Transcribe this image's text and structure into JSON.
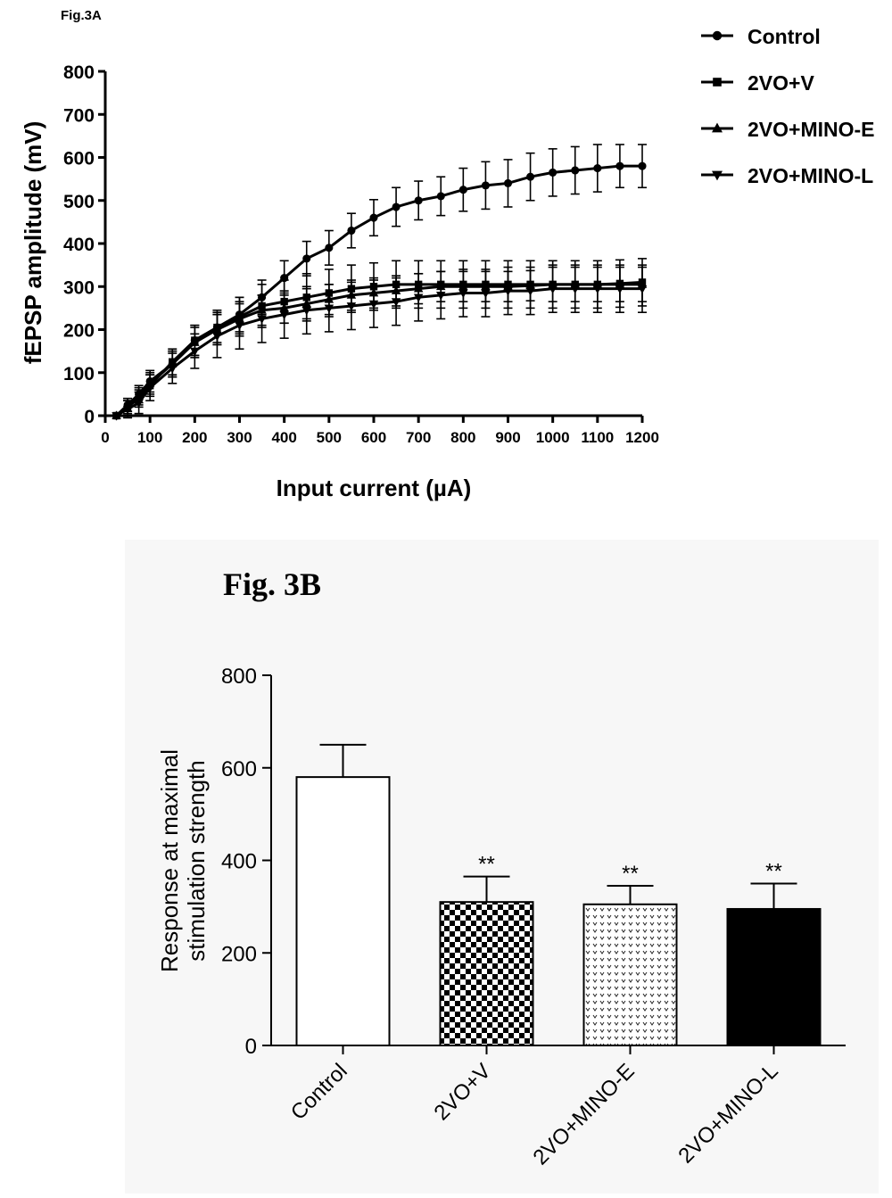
{
  "colors": {
    "ink": "#000000",
    "panel_b_background": "#f7f7f7",
    "page": "#ffffff"
  },
  "chart_data": [
    {
      "type": "line",
      "panel_label": "Fig.3A",
      "title": "",
      "xlabel": "Input current (µA)",
      "ylabel": "fEPSP amplitude (mV)",
      "xlim": [
        0,
        1200
      ],
      "ylim": [
        0,
        800
      ],
      "xticks": [
        0,
        100,
        200,
        300,
        400,
        500,
        600,
        700,
        800,
        900,
        1000,
        1100,
        1200
      ],
      "yticks": [
        0,
        100,
        200,
        300,
        400,
        500,
        600,
        700,
        800
      ],
      "legend_position": "top-right",
      "x": [
        25,
        50,
        75,
        100,
        150,
        200,
        250,
        300,
        350,
        400,
        450,
        500,
        550,
        600,
        650,
        700,
        750,
        800,
        850,
        900,
        950,
        1000,
        1050,
        1100,
        1150,
        1200
      ],
      "series": [
        {
          "name": "Control",
          "marker": "circle",
          "values": [
            0,
            25,
            50,
            80,
            120,
            175,
            205,
            235,
            275,
            320,
            365,
            390,
            430,
            460,
            485,
            500,
            510,
            525,
            535,
            540,
            555,
            565,
            570,
            575,
            580,
            580
          ],
          "errors": [
            0,
            15,
            20,
            25,
            30,
            35,
            35,
            40,
            40,
            40,
            40,
            40,
            40,
            42,
            45,
            45,
            45,
            50,
            55,
            55,
            55,
            55,
            55,
            55,
            50,
            50
          ]
        },
        {
          "name": "2VO+V",
          "marker": "square",
          "values": [
            0,
            20,
            40,
            70,
            125,
            175,
            205,
            230,
            255,
            265,
            275,
            285,
            295,
            300,
            305,
            305,
            305,
            305,
            305,
            305,
            305,
            305,
            305,
            305,
            307,
            310
          ],
          "errors": [
            0,
            15,
            20,
            25,
            30,
            35,
            40,
            45,
            50,
            50,
            55,
            55,
            55,
            55,
            55,
            55,
            55,
            55,
            55,
            55,
            55,
            55,
            55,
            55,
            55,
            55
          ]
        },
        {
          "name": "2VO+MINO-E",
          "marker": "triangle-up",
          "values": [
            0,
            25,
            45,
            75,
            120,
            170,
            200,
            225,
            245,
            250,
            260,
            270,
            280,
            285,
            290,
            295,
            300,
            300,
            300,
            300,
            302,
            305,
            305,
            305,
            305,
            305
          ],
          "errors": [
            0,
            15,
            20,
            25,
            30,
            35,
            35,
            35,
            35,
            35,
            35,
            35,
            35,
            35,
            35,
            35,
            35,
            35,
            35,
            35,
            35,
            40,
            40,
            40,
            40,
            40
          ]
        },
        {
          "name": "2VO+MINO-L",
          "marker": "triangle-down",
          "values": [
            0,
            15,
            30,
            65,
            110,
            150,
            185,
            210,
            225,
            235,
            245,
            250,
            255,
            260,
            265,
            275,
            280,
            285,
            285,
            290,
            290,
            295,
            295,
            295,
            295,
            295
          ],
          "errors": [
            0,
            20,
            25,
            30,
            35,
            40,
            50,
            55,
            55,
            55,
            55,
            55,
            55,
            55,
            55,
            55,
            55,
            55,
            55,
            55,
            55,
            55,
            55,
            55,
            55,
            55
          ]
        }
      ]
    },
    {
      "type": "bar",
      "panel_label": "Fig. 3B",
      "title": "",
      "xlabel": "",
      "ylabel_lines": [
        "Response at maximal",
        "stimulation strength"
      ],
      "ylim": [
        0,
        800
      ],
      "yticks": [
        0,
        200,
        400,
        600,
        800
      ],
      "categories": [
        "Control",
        "2VO+V",
        "2VO+MINO-E",
        "2VO+MINO-L"
      ],
      "values": [
        580,
        310,
        305,
        295
      ],
      "errors": [
        70,
        55,
        40,
        55
      ],
      "annotations": [
        "",
        "**",
        "**",
        "**"
      ],
      "fills": [
        "white",
        "checkerboard",
        "dotted",
        "black"
      ]
    }
  ]
}
